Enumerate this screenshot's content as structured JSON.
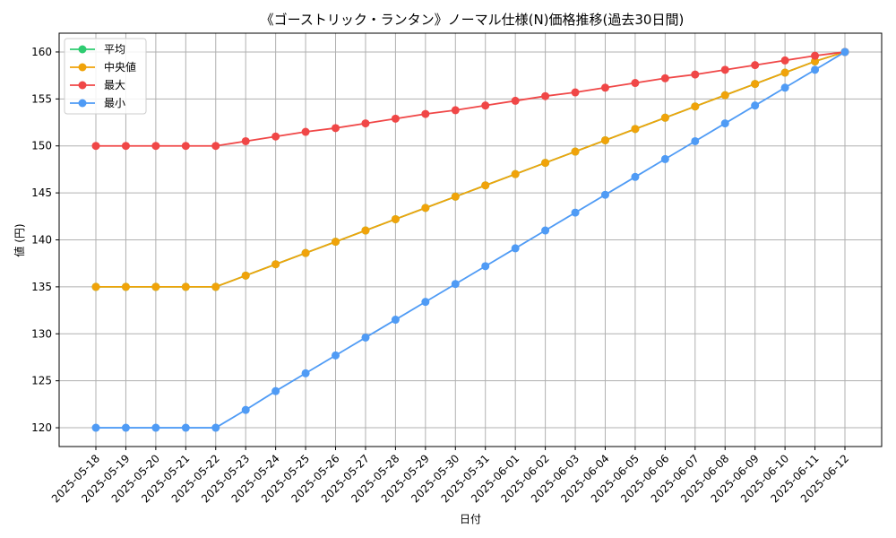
{
  "chart_data": {
    "type": "line",
    "title": "《ゴーストリック・ランタン》ノーマル仕様(N)価格推移(過去30日間)",
    "xlabel": "日付",
    "ylabel": "値 (円)",
    "ylim": [
      118,
      162
    ],
    "yticks": [
      120,
      125,
      130,
      135,
      140,
      145,
      150,
      155,
      160
    ],
    "grid": true,
    "legend_position": "top-left",
    "categories": [
      "2025-05-18",
      "2025-05-19",
      "2025-05-20",
      "2025-05-21",
      "2025-05-22",
      "2025-05-23",
      "2025-05-24",
      "2025-05-25",
      "2025-05-26",
      "2025-05-27",
      "2025-05-28",
      "2025-05-29",
      "2025-05-30",
      "2025-05-31",
      "2025-06-01",
      "2025-06-02",
      "2025-06-03",
      "2025-06-04",
      "2025-06-05",
      "2025-06-06",
      "2025-06-07",
      "2025-06-08",
      "2025-06-09",
      "2025-06-10",
      "2025-06-11",
      "2025-06-12"
    ],
    "series": [
      {
        "name": "平均",
        "color": "#2ecc71",
        "values": [
          135,
          135,
          135,
          135,
          135,
          136.2,
          137.4,
          138.6,
          139.8,
          141.0,
          142.2,
          143.4,
          144.6,
          145.8,
          147.0,
          148.2,
          149.4,
          150.6,
          151.8,
          153.0,
          154.2,
          155.4,
          156.6,
          157.8,
          159.0,
          160
        ]
      },
      {
        "name": "中央値",
        "color": "#f0a30a",
        "values": [
          135,
          135,
          135,
          135,
          135,
          136.2,
          137.4,
          138.6,
          139.8,
          141.0,
          142.2,
          143.4,
          144.6,
          145.8,
          147.0,
          148.2,
          149.4,
          150.6,
          151.8,
          153.0,
          154.2,
          155.4,
          156.6,
          157.8,
          159.0,
          160
        ]
      },
      {
        "name": "最大",
        "color": "#f04747",
        "values": [
          150,
          150,
          150,
          150,
          150,
          150.5,
          151.0,
          151.5,
          151.9,
          152.4,
          152.9,
          153.4,
          153.8,
          154.3,
          154.8,
          155.3,
          155.7,
          156.2,
          156.7,
          157.2,
          157.6,
          158.1,
          158.6,
          159.1,
          159.6,
          160
        ]
      },
      {
        "name": "最小",
        "color": "#4f9bf5",
        "values": [
          120,
          120,
          120,
          120,
          120,
          121.9,
          123.9,
          125.8,
          127.7,
          129.6,
          131.5,
          133.4,
          135.3,
          137.2,
          139.1,
          141.0,
          142.9,
          144.8,
          146.7,
          148.6,
          150.5,
          152.4,
          154.3,
          156.2,
          158.1,
          160
        ]
      }
    ]
  }
}
